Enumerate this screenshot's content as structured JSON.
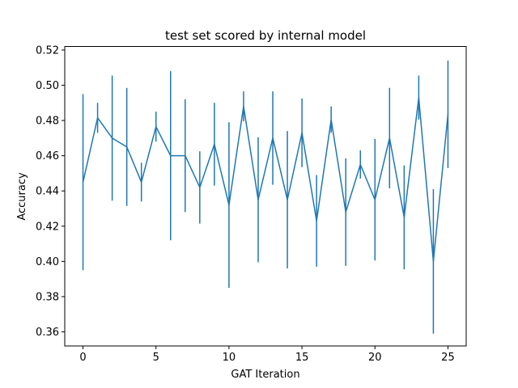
{
  "chart_data": {
    "type": "line",
    "title": "test set scored by internal model",
    "xlabel": "GAT Iteration",
    "ylabel": "Accuracy",
    "xlim": [
      -1.25,
      26.25
    ],
    "ylim": [
      0.352,
      0.522
    ],
    "xticks": [
      0,
      5,
      10,
      15,
      20,
      25
    ],
    "xtick_labels": [
      "0",
      "5",
      "10",
      "15",
      "20",
      "25"
    ],
    "yticks": [
      0.36,
      0.38,
      0.4,
      0.42,
      0.44,
      0.46,
      0.48,
      0.5,
      0.52
    ],
    "ytick_labels": [
      "0.36",
      "0.38",
      "0.40",
      "0.42",
      "0.44",
      "0.46",
      "0.48",
      "0.50",
      "0.52"
    ],
    "grid": false,
    "color": "#1f77b4",
    "series": [
      {
        "x": [
          0,
          1,
          2,
          3,
          4,
          5,
          6,
          7,
          8,
          9,
          10,
          11,
          12,
          13,
          14,
          15,
          16,
          17,
          18,
          19,
          20,
          21,
          22,
          23,
          24,
          25
        ],
        "y": [
          0.445,
          0.4815,
          0.47,
          0.465,
          0.445,
          0.4765,
          0.46,
          0.46,
          0.442,
          0.4665,
          0.432,
          0.488,
          0.435,
          0.47,
          0.435,
          0.473,
          0.423,
          0.4805,
          0.428,
          0.455,
          0.435,
          0.47,
          0.425,
          0.493,
          0.4,
          0.4835
        ],
        "yerr": [
          0.05,
          0.0085,
          0.0355,
          0.0335,
          0.011,
          0.0085,
          0.048,
          0.032,
          0.0205,
          0.0235,
          0.047,
          0.0085,
          0.0355,
          0.0265,
          0.039,
          0.0195,
          0.026,
          0.0075,
          0.0305,
          0.008,
          0.0345,
          0.0285,
          0.0295,
          0.0125,
          0.041,
          0.0305
        ]
      }
    ]
  }
}
